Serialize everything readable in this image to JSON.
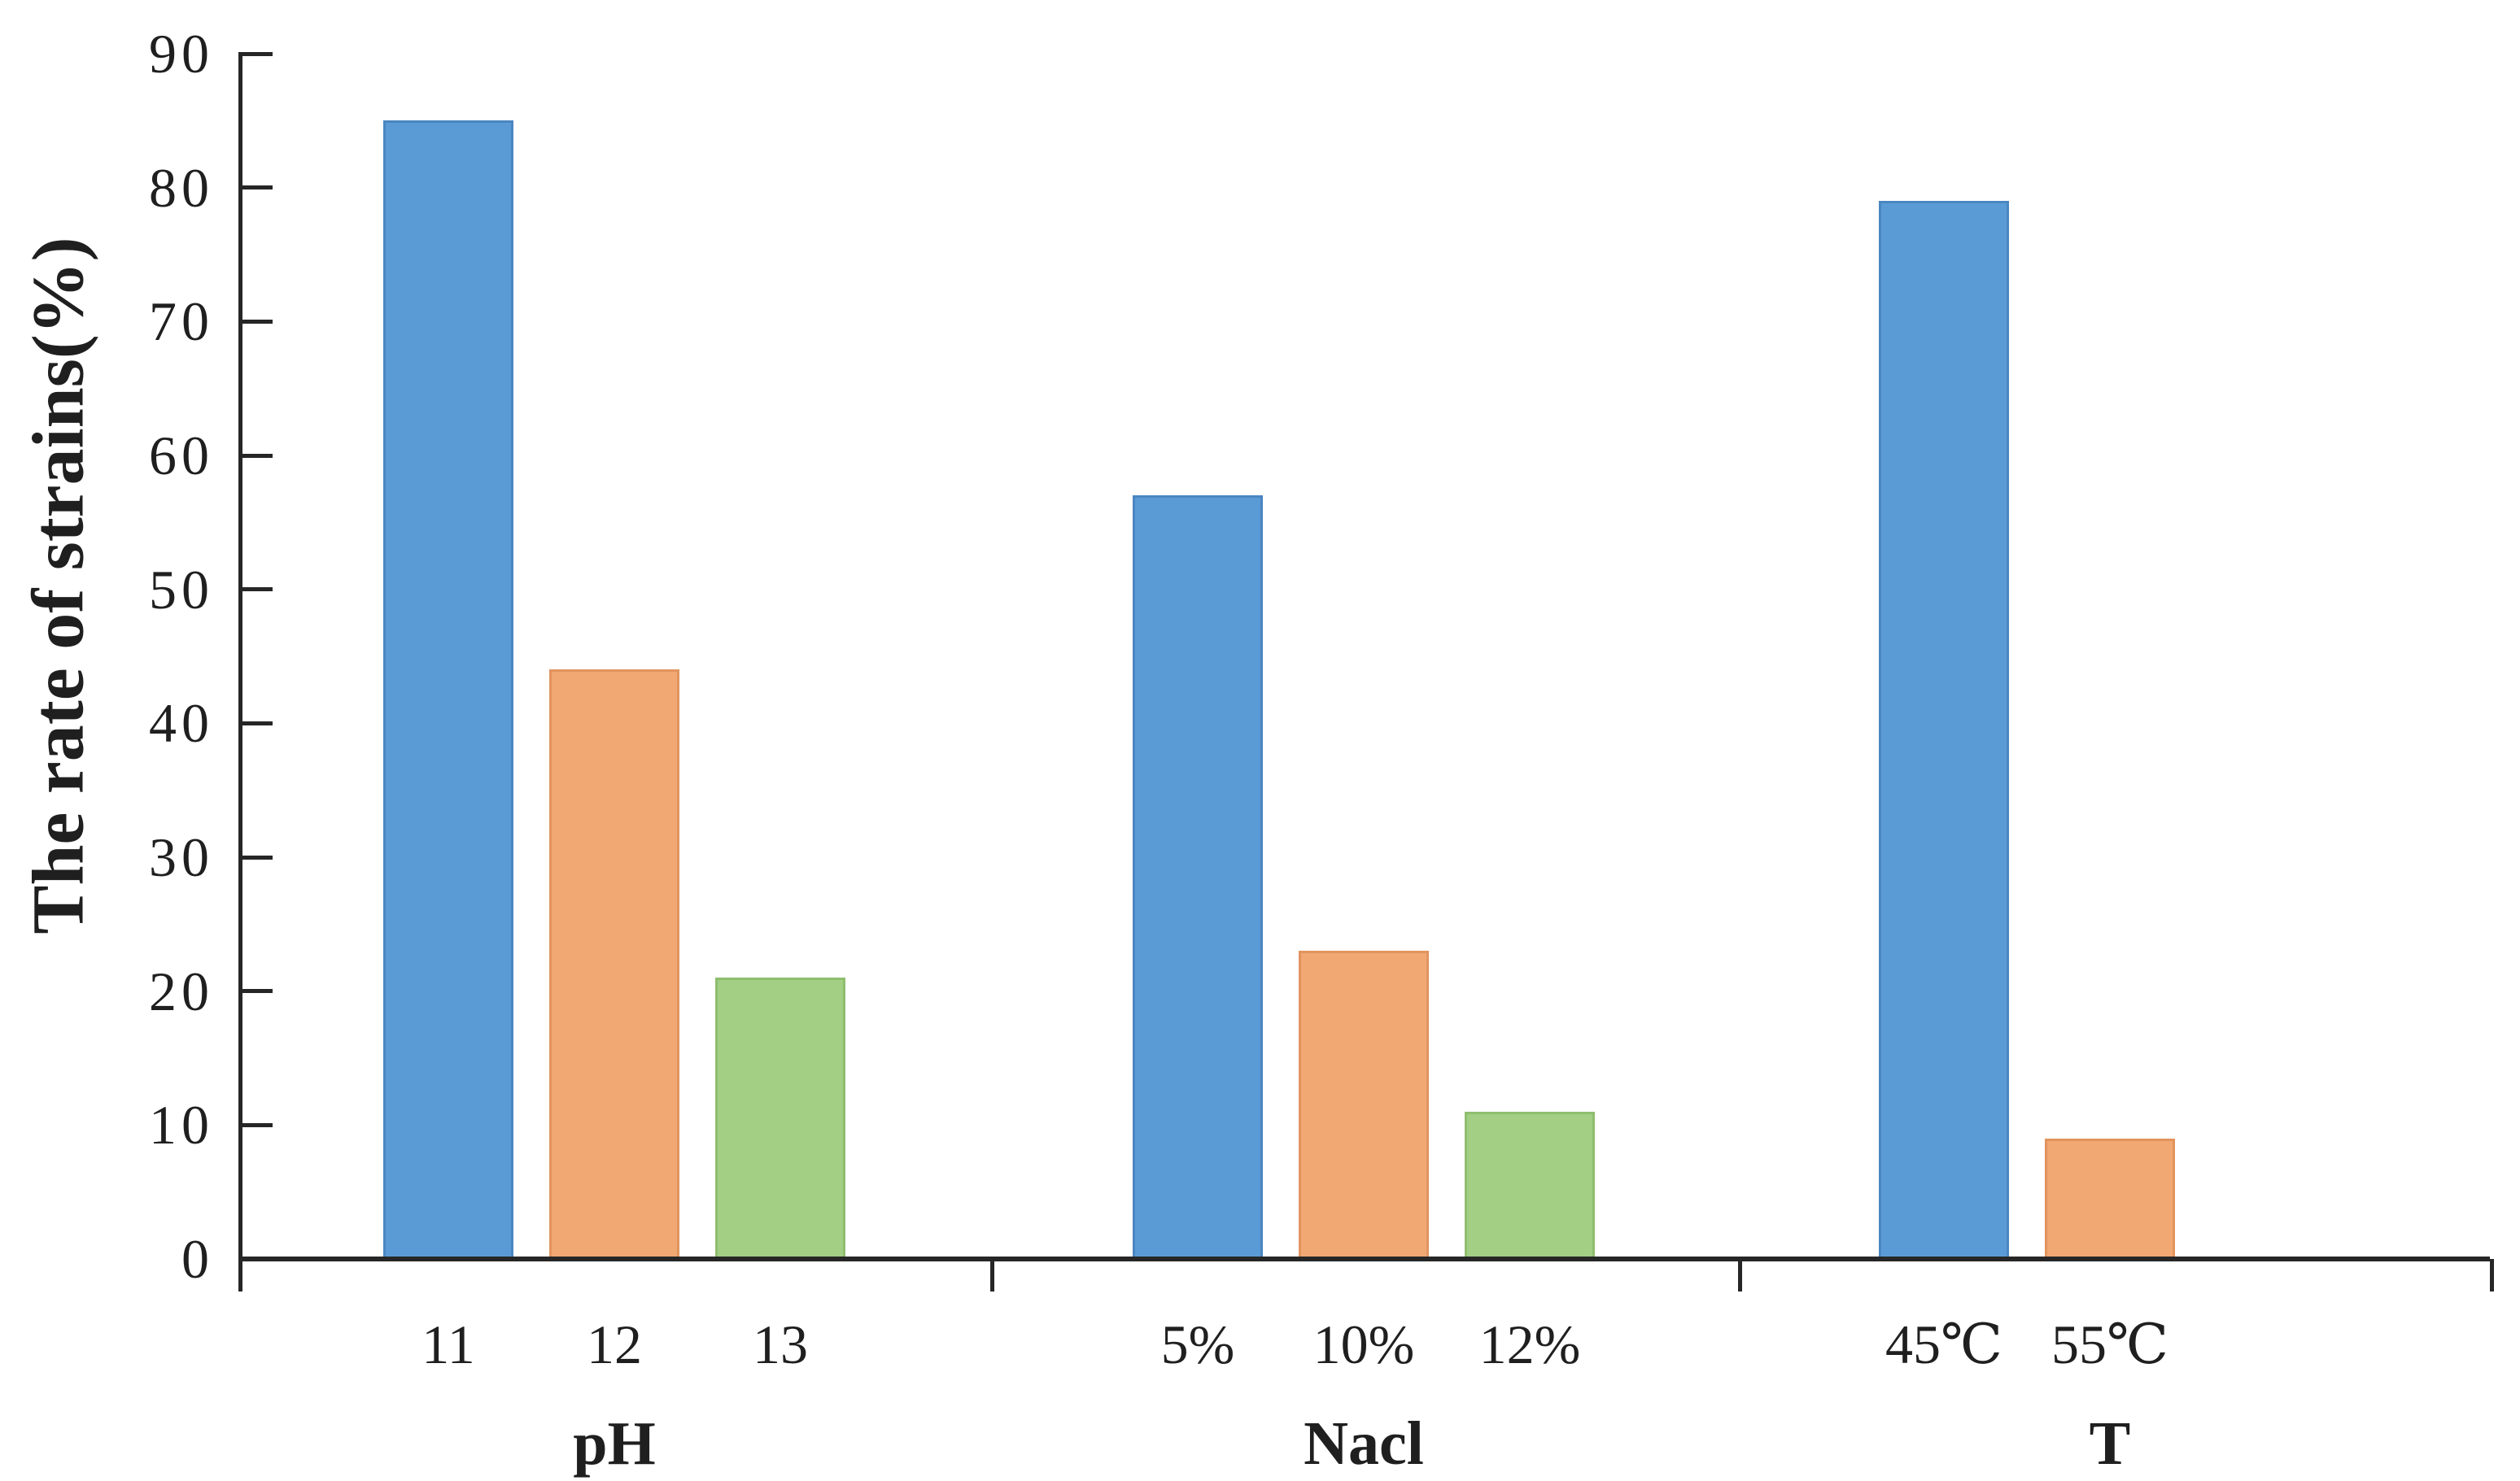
{
  "chart_data": {
    "type": "bar",
    "title": "",
    "ylabel": "The rate of strains(%)",
    "xlabel": "",
    "ylim": [
      0,
      90
    ],
    "ytick_step": 10,
    "yticks": [
      0,
      10,
      20,
      30,
      40,
      50,
      60,
      70,
      80,
      90
    ],
    "grid": false,
    "legend": "none",
    "groups": [
      {
        "label": "pH",
        "categories": [
          "11",
          "12",
          "13"
        ],
        "values": [
          85,
          44,
          21
        ]
      },
      {
        "label": "Nacl",
        "categories": [
          "5%",
          "10%",
          "12%"
        ],
        "values": [
          57,
          23,
          11
        ]
      },
      {
        "label": "T",
        "categories": [
          "45℃",
          "55℃"
        ],
        "values": [
          79,
          9
        ]
      }
    ],
    "bar_colors": [
      "#5B9BD5",
      "#F2A873",
      "#A2CF83"
    ],
    "bar_border_colors": [
      "#4A86C0",
      "#E2945E",
      "#8FBE6F"
    ],
    "axis_color": "#262626",
    "text_color": "#1F1F1F",
    "background_color": "#FFFFFF"
  }
}
